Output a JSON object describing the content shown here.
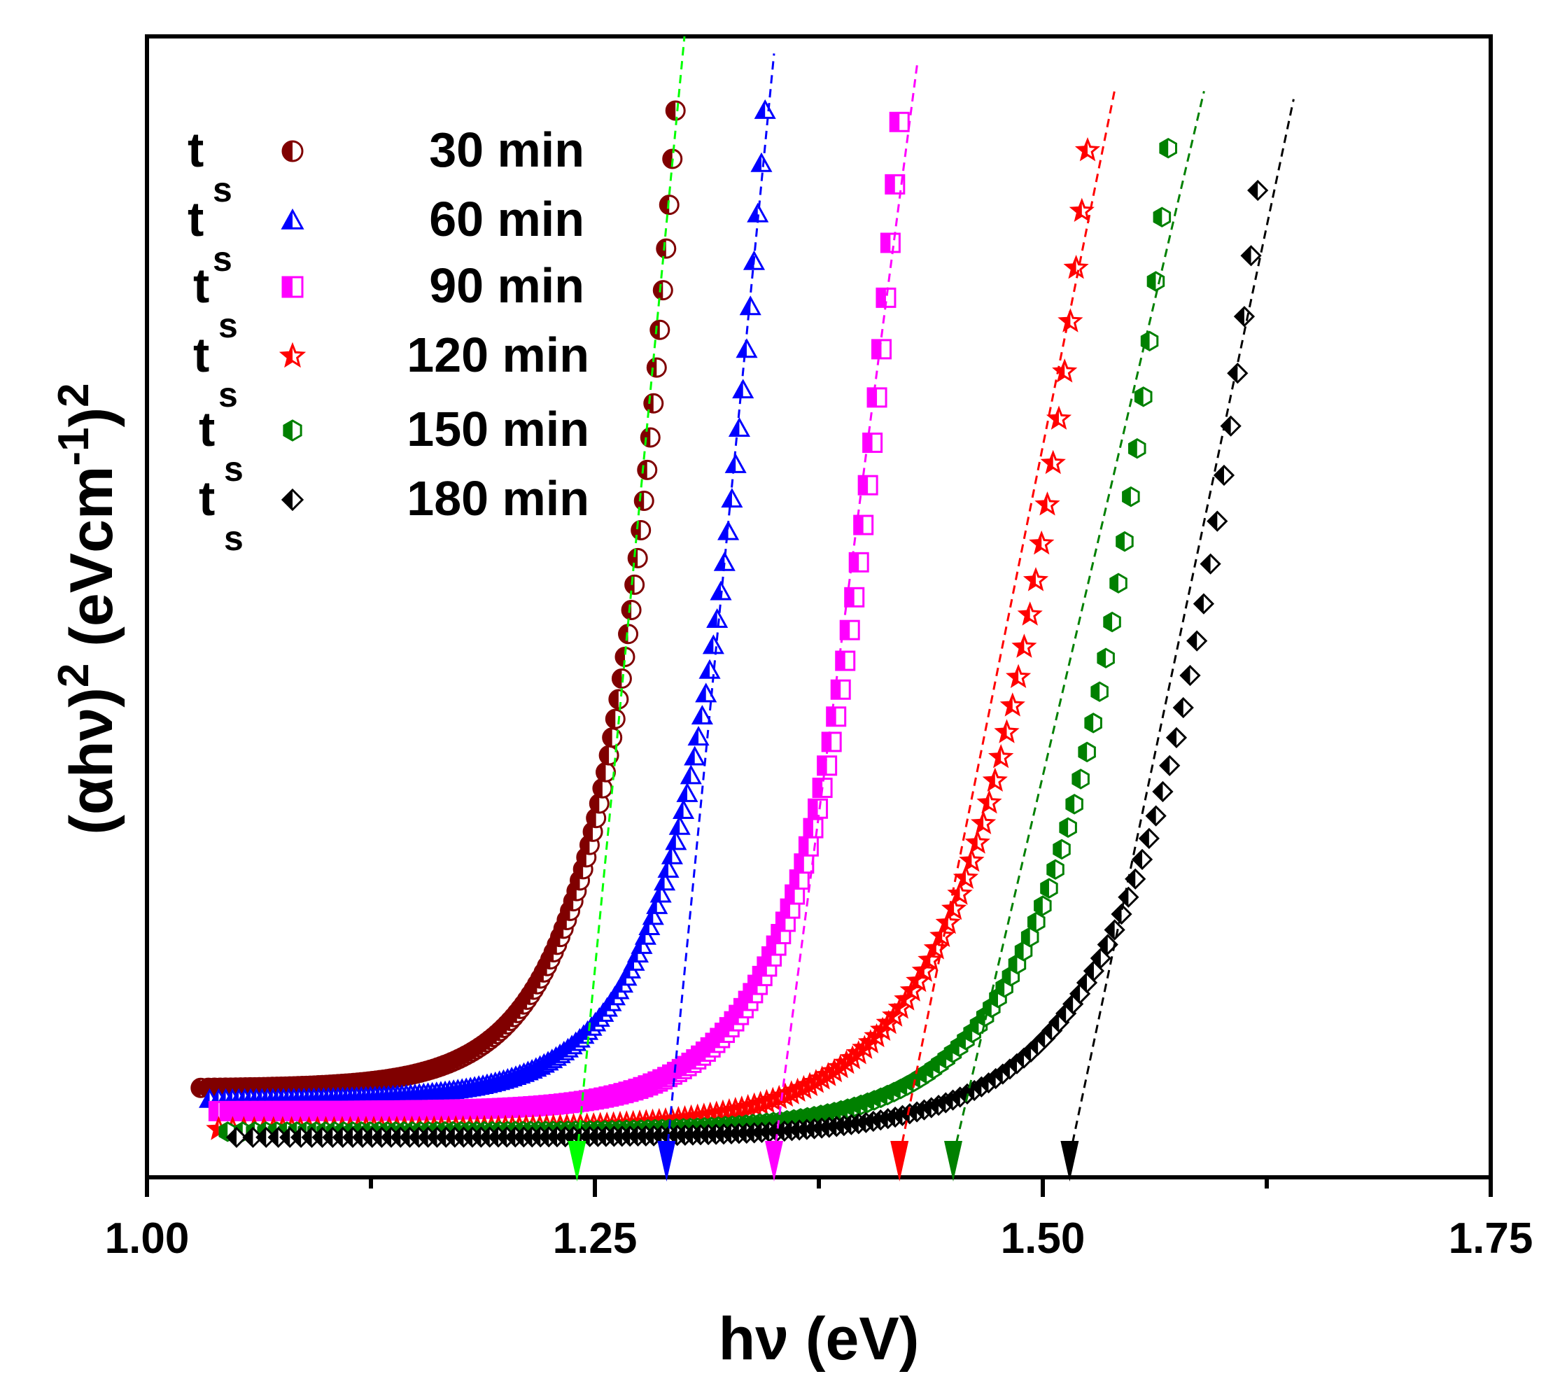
{
  "chart_data": {
    "type": "scatter",
    "title": "",
    "xlabel": "hν  (eV)",
    "ylabel": {
      "main": "(αhν)",
      "sup1": "2",
      "unit_open": " (eVcm",
      "unit_sup": "-1",
      "unit_close": ")",
      "sup2": "2"
    },
    "xlim": [
      1.0,
      1.75
    ],
    "ylim": [
      0,
      1.0
    ],
    "y_ticks_shown": false,
    "x_ticks": [
      "1.00",
      "1.25",
      "1.50",
      "1.75"
    ],
    "x_tick_values": [
      1.0,
      1.25,
      1.5,
      1.75
    ],
    "x_minor_tick_values": [
      1.125,
      1.375,
      1.625
    ],
    "grid": false,
    "legend_position": "top-left",
    "series": [
      {
        "label": "ts",
        "sub": "s",
        "prefix": "t",
        "name": "30 min",
        "color": "#800000",
        "marker": "circle-half",
        "x_start": 1.03,
        "x_end": 1.295,
        "baseline": 0.078,
        "y_end": 0.935,
        "steepness": 29,
        "fit": {
          "x0": 1.24,
          "x1": 1.3,
          "y1": 1.0
        },
        "bandgap": 1.24
      },
      {
        "label": "ts",
        "sub": "s",
        "prefix": "t",
        "name": "60 min",
        "color": "#0000ff",
        "marker": "triangle-half",
        "x_start": 1.035,
        "x_end": 1.345,
        "baseline": 0.068,
        "y_end": 0.935,
        "steepness": 27,
        "fit": {
          "x0": 1.29,
          "x1": 1.35,
          "y1": 0.985
        },
        "bandgap": 1.29
      },
      {
        "label": "ts",
        "sub": "s",
        "prefix": "t",
        "name": "90 min",
        "color": "#ff00ff",
        "marker": "square-half",
        "x_start": 1.04,
        "x_end": 1.42,
        "baseline": 0.058,
        "y_end": 0.925,
        "steepness": 26,
        "fit": {
          "x0": 1.35,
          "x1": 1.43,
          "y1": 0.977
        },
        "bandgap": 1.35
      },
      {
        "label": "ts",
        "sub": "s",
        "prefix": "t",
        "name": "120 min",
        "color": "#ff0000",
        "marker": "star-half",
        "x_start": 1.04,
        "x_end": 1.525,
        "baseline": 0.042,
        "y_end": 0.9,
        "steepness": 20,
        "fit": {
          "x0": 1.42,
          "x1": 1.54,
          "y1": 0.952
        },
        "bandgap": 1.42
      },
      {
        "label": "ts",
        "sub": "s",
        "prefix": "t",
        "name": "150 min",
        "color": "#008000",
        "marker": "hexagon-half",
        "x_start": 1.045,
        "x_end": 1.57,
        "baseline": 0.04,
        "y_end": 0.902,
        "steepness": 21,
        "fit": {
          "x0": 1.45,
          "x1": 1.59,
          "y1": 0.952
        },
        "bandgap": 1.45
      },
      {
        "label": "ts",
        "sub": "s",
        "prefix": "t",
        "name": "180 min",
        "color": "#000000",
        "marker": "diamond-half",
        "x_start": 1.05,
        "x_end": 1.62,
        "baseline": 0.035,
        "y_end": 0.865,
        "steepness": 19,
        "fit": {
          "x0": 1.515,
          "x1": 1.64,
          "y1": 0.945
        },
        "bandgap": 1.515
      }
    ],
    "annotations": "Dashed linear fits extrapolated to the x-axis with arrows marking band gap values",
    "fit_arrow_colors": [
      "#00ff00",
      "#0000ff",
      "#ff00ff",
      "#ff0000",
      "#008000",
      "#000000"
    ]
  }
}
